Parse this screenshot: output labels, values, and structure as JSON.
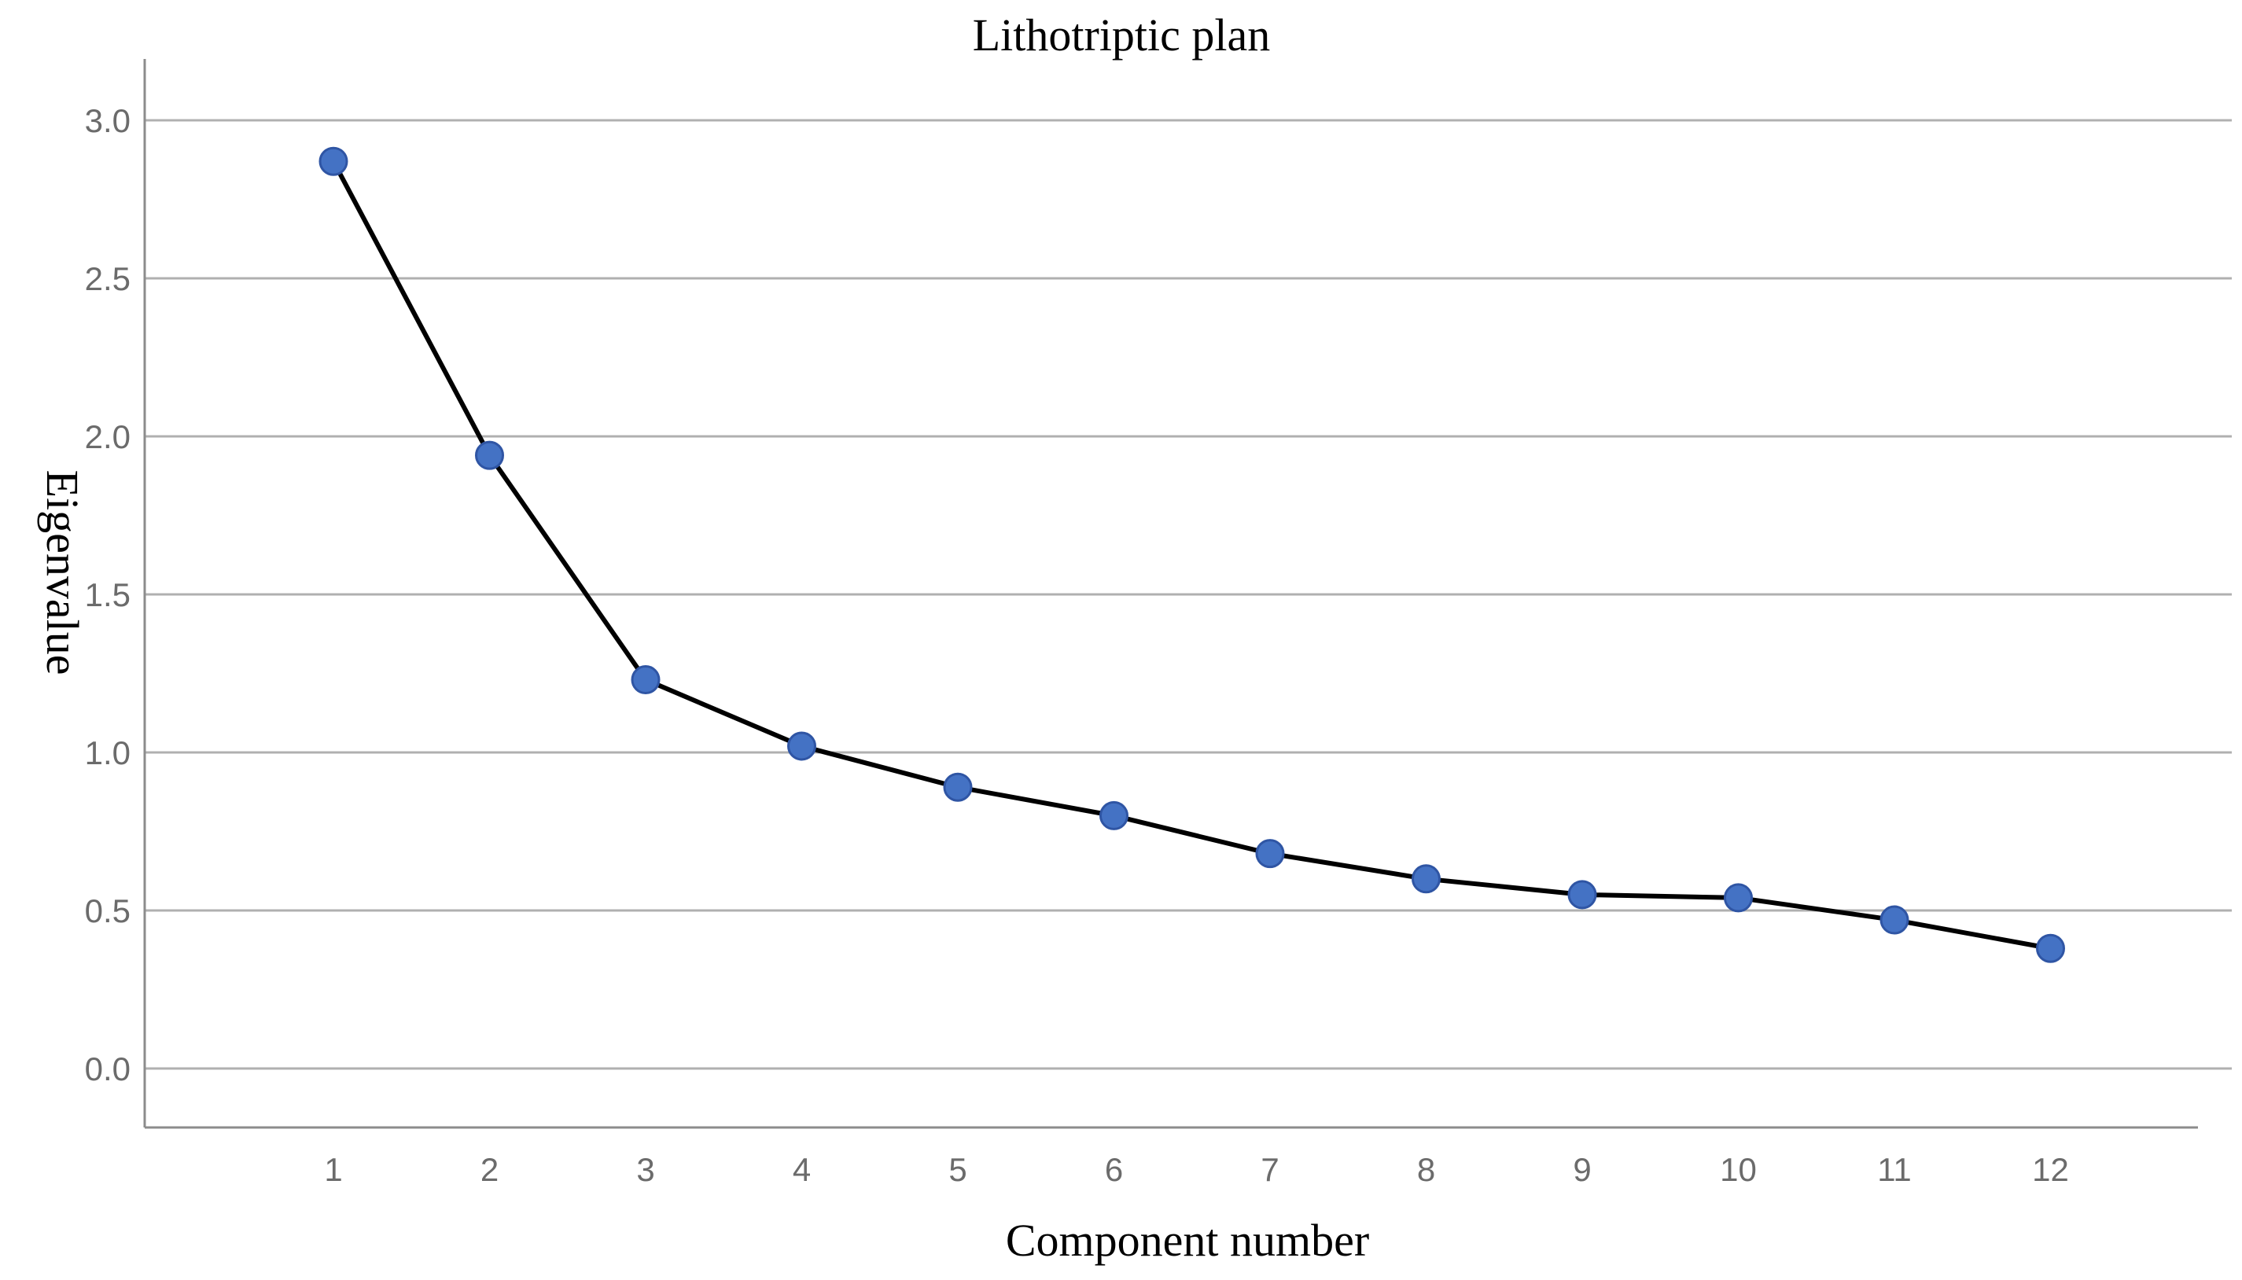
{
  "chart_data": {
    "type": "line",
    "title": "Lithotriptic plan",
    "xlabel": "Component number",
    "ylabel": "Eigenvalue",
    "x": [
      1,
      2,
      3,
      4,
      5,
      6,
      7,
      8,
      9,
      10,
      11,
      12
    ],
    "x_tick_labels": [
      "1",
      "2",
      "3",
      "4",
      "5",
      "6",
      "7",
      "8",
      "9",
      "10",
      "11",
      "12"
    ],
    "y_tick_values": [
      0.0,
      0.5,
      1.0,
      1.5,
      2.0,
      2.5,
      3.0
    ],
    "y_tick_labels": [
      "0.0",
      "0.5",
      "1.0",
      "1.5",
      "2.0",
      "2.5",
      "3.0"
    ],
    "series": [
      {
        "values": [
          2.87,
          1.94,
          1.23,
          1.02,
          0.89,
          0.8,
          0.68,
          0.6,
          0.55,
          0.54,
          0.47,
          0.38
        ]
      }
    ],
    "ylim": [
      -0.2,
      3.2
    ],
    "xlim": [
      -0.2,
      13.1
    ],
    "grid": true,
    "colors": {
      "line": "#000000",
      "marker_fill": "#4472c4",
      "marker_stroke": "#2f55a4",
      "grid": "#b0b0b0",
      "tick_text": "#6b6b6b"
    }
  }
}
